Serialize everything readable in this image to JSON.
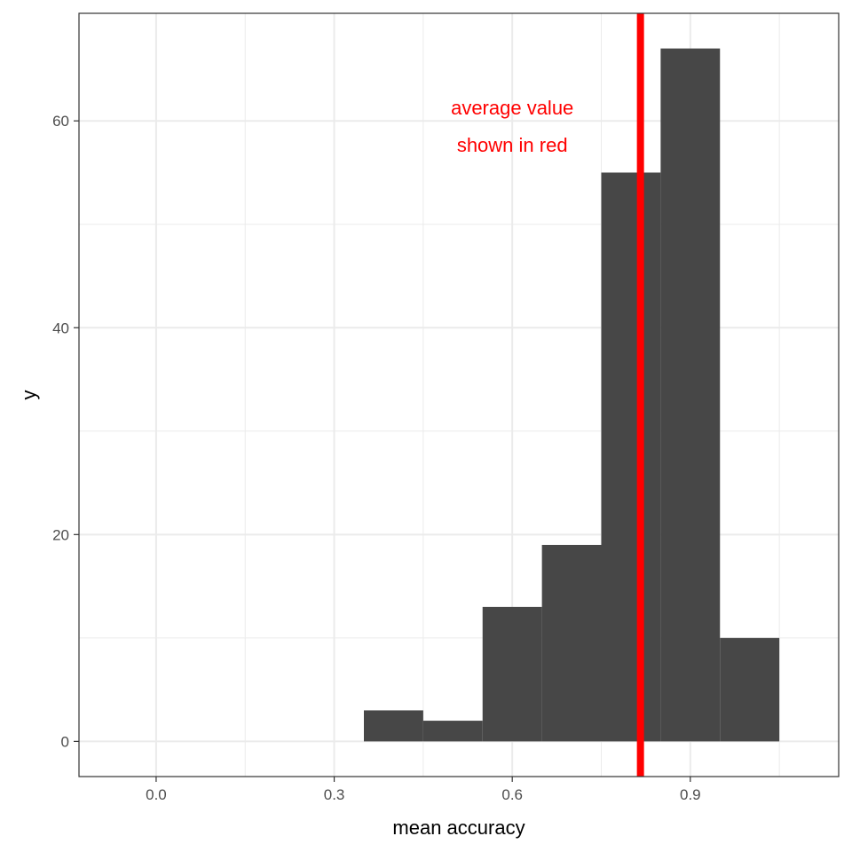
{
  "chart_data": {
    "type": "bar",
    "subtype": "histogram",
    "bins": [
      {
        "start": 0.35,
        "end": 0.45,
        "count": 3
      },
      {
        "start": 0.45,
        "end": 0.55,
        "count": 2
      },
      {
        "start": 0.55,
        "end": 0.65,
        "count": 13
      },
      {
        "start": 0.65,
        "end": 0.75,
        "count": 19
      },
      {
        "start": 0.75,
        "end": 0.85,
        "count": 55
      },
      {
        "start": 0.85,
        "end": 0.95,
        "count": 67
      },
      {
        "start": 0.95,
        "end": 1.05,
        "count": 10
      }
    ],
    "xlabel": "mean accuracy",
    "ylabel": "y",
    "xlim": [
      -0.13,
      1.15
    ],
    "ylim": [
      -3.4,
      70.4
    ],
    "x_ticks": [
      0.0,
      0.3,
      0.6,
      0.9
    ],
    "x_tick_labels": [
      "0.0",
      "0.3",
      "0.6",
      "0.9"
    ],
    "x_minor_ticks": [
      0.15,
      0.45,
      0.75,
      1.05
    ],
    "y_ticks": [
      0,
      20,
      40,
      60
    ],
    "y_tick_labels": [
      "0",
      "20",
      "40",
      "60"
    ],
    "y_minor_ticks": [
      10,
      30,
      50
    ],
    "grid": true,
    "vline": {
      "x": 0.816,
      "color": "#ff0000"
    },
    "annotation": {
      "lines": [
        "average value",
        "shown in red"
      ],
      "x": 0.6,
      "y_center": 59.5,
      "color": "#ff0000"
    },
    "colors": {
      "bar": "#474747",
      "grid": "#ebebeb",
      "panel_border": "#333333",
      "vline": "#ff0000"
    }
  }
}
